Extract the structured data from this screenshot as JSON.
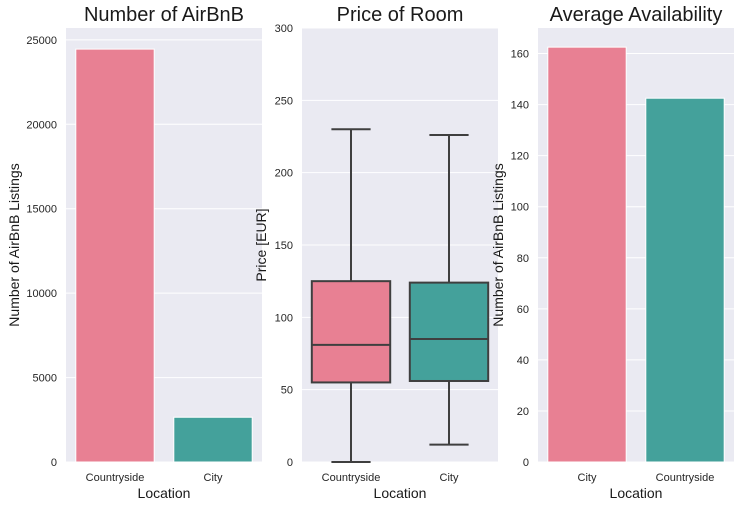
{
  "chart_data": [
    {
      "type": "bar",
      "title": "Number of AirBnB",
      "xlabel": "Location",
      "ylabel": "Number of AirBnB Listings",
      "categories": [
        "Countryside",
        "City"
      ],
      "values": [
        24450,
        2650
      ],
      "ylim": [
        0,
        25700
      ],
      "yticks": [
        0,
        5000,
        10000,
        15000,
        20000,
        25000
      ],
      "colors": [
        "#e88093",
        "#44a19b"
      ],
      "grid": true
    },
    {
      "type": "boxplot",
      "title": "Price of Room",
      "xlabel": "Location",
      "ylabel": "Price [EUR]",
      "categories": [
        "Countryside",
        "City"
      ],
      "boxes": [
        {
          "whisker_low": 0,
          "q1": 55,
          "median": 81,
          "q3": 125,
          "whisker_high": 230
        },
        {
          "whisker_low": 12,
          "q1": 56,
          "median": 85,
          "q3": 124,
          "whisker_high": 226
        }
      ],
      "ylim": [
        0,
        300
      ],
      "yticks": [
        0,
        50,
        100,
        150,
        200,
        250,
        300
      ],
      "colors": [
        "#e88093",
        "#44a19b"
      ],
      "grid": true
    },
    {
      "type": "bar",
      "title": "Average Availability",
      "xlabel": "Location",
      "ylabel": "Number of AirBnB Listings",
      "categories": [
        "City",
        "Countryside"
      ],
      "values": [
        162.5,
        142.5
      ],
      "ylim": [
        0,
        170
      ],
      "yticks": [
        0,
        20,
        40,
        60,
        80,
        100,
        120,
        140,
        160
      ],
      "colors": [
        "#e88093",
        "#44a19b"
      ],
      "grid": true
    }
  ]
}
